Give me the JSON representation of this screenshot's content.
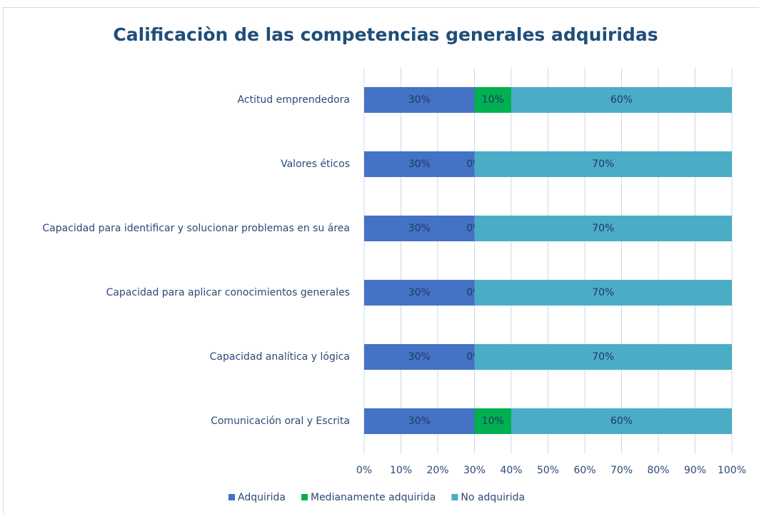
{
  "chart_data": {
    "type": "stacked_bar_horizontal",
    "title": "Calificaciòn de las competencias generales adquiridas",
    "categories": [
      "Actitud emprendedora",
      "Valores éticos",
      "Capacidad para identificar y solucionar problemas en su área",
      "Capacidad para aplicar conocimientos generales",
      "Capacidad analítica y lógica",
      "Comunicación oral y Escrita"
    ],
    "series": [
      {
        "name": "Adquirida",
        "color": "#4472c4",
        "values": [
          30,
          30,
          30,
          30,
          30,
          30
        ],
        "value_labels": [
          "30%",
          "30%",
          "30%",
          "30%",
          "30%",
          "30%"
        ]
      },
      {
        "name": "Medianamente adquirida",
        "color": "#00b050",
        "values": [
          10,
          0,
          0,
          0,
          0,
          10
        ],
        "value_labels": [
          "10%",
          "0%",
          "0%",
          "0%",
          "0%",
          "10%"
        ]
      },
      {
        "name": "No adquirida",
        "color": "#4bacc6",
        "values": [
          60,
          70,
          70,
          70,
          70,
          60
        ],
        "value_labels": [
          "60%",
          "70%",
          "70%",
          "70%",
          "70%",
          "60%"
        ]
      }
    ],
    "xlim": [
      0,
      100
    ],
    "xticks": [
      {
        "value": 0,
        "label": "0%"
      },
      {
        "value": 10,
        "label": "10%"
      },
      {
        "value": 20,
        "label": "20%"
      },
      {
        "value": 30,
        "label": "30%"
      },
      {
        "value": 40,
        "label": "40%"
      },
      {
        "value": 50,
        "label": "50%"
      },
      {
        "value": 60,
        "label": "60%"
      },
      {
        "value": 70,
        "label": "70%"
      },
      {
        "value": 80,
        "label": "80%"
      },
      {
        "value": 90,
        "label": "90%"
      },
      {
        "value": 100,
        "label": "100%"
      }
    ],
    "grid": true,
    "legend": "bottom"
  }
}
